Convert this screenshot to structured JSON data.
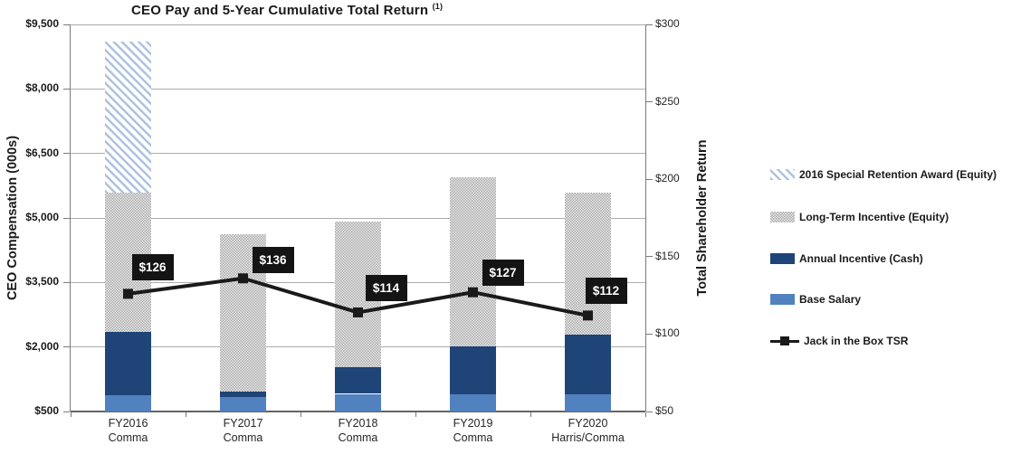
{
  "chart_title": {
    "text": "CEO Pay and 5-Year Cumulative Total Return",
    "footnote_marker": "(1)"
  },
  "chart_data": {
    "type": "combo: stacked-bar + line",
    "title": "CEO Pay and 5-Year Cumulative Total Return (1)",
    "categories": [
      "FY2016 Comma",
      "FY2017 Comma",
      "FY2018 Comma",
      "FY2019 Comma",
      "FY2020 Harris/Comma"
    ],
    "category_lines": [
      [
        "FY2016",
        "Comma"
      ],
      [
        "FY2017",
        "Comma"
      ],
      [
        "FY2018",
        "Comma"
      ],
      [
        "FY2019",
        "Comma"
      ],
      [
        "FY2020",
        "Harris/Comma"
      ]
    ],
    "bar_series": [
      {
        "name": "Base Salary",
        "swatch": "solid-blue",
        "color": "#5281C0",
        "values": [
          880,
          835,
          910,
          905,
          890
        ]
      },
      {
        "name": "Annual Incentive (Cash)",
        "swatch": "solid-navy",
        "color": "#1F4477",
        "values": [
          1480,
          125,
          630,
          1105,
          1400
        ]
      },
      {
        "name": "Long-Term Incentive (Equity)",
        "swatch": "gray-checker-pattern",
        "color": "#C9C9C9",
        "values": [
          3235,
          3655,
          3375,
          3935,
          3305
        ]
      },
      {
        "name": "2016 Special Retention Award (Equity)",
        "swatch": "blue-diagonal-hatch",
        "color": "#AEC2E0",
        "values": [
          3500,
          0,
          0,
          0,
          0
        ]
      }
    ],
    "bar_totals": [
      9095,
      4615,
      4915,
      5945,
      5595
    ],
    "line_series": {
      "name": "Jack in the Box TSR",
      "color": "#1A1A1A",
      "values": [
        126,
        136,
        114,
        127,
        112
      ],
      "point_labels": [
        "$126",
        "$136",
        "$114",
        "$127",
        "$112"
      ]
    },
    "left_axis": {
      "title": "CEO Compensation (000s)",
      "min": 500,
      "max": 9500,
      "tick_step": 1500,
      "tick_labels": [
        "$9,500",
        "$8,000",
        "$6,500",
        "$5,000",
        "$3,500",
        "$2,000",
        "$500"
      ]
    },
    "right_axis": {
      "title": "Total Shareholder Return",
      "min": 50,
      "max": 300,
      "tick_step": 50,
      "tick_labels": [
        "$300",
        "$250",
        "$200",
        "$150",
        "$100",
        "$50"
      ]
    },
    "legend": [
      {
        "label": "2016 Special Retention Award (Equity)",
        "swatch": "blue-diagonal-hatch"
      },
      {
        "label": "Long-Term Incentive (Equity)",
        "swatch": "gray-checker-pattern"
      },
      {
        "label": "Annual Incentive (Cash)",
        "swatch": "solid-navy"
      },
      {
        "label": "Base Salary",
        "swatch": "solid-blue"
      },
      {
        "label": "Jack in the Box TSR",
        "swatch": "line-with-square-marker"
      }
    ],
    "legend_position": "right",
    "gridlines": "horizontal, aligned to left axis ticks",
    "colors": {
      "base_salary": "#5281C0",
      "annual_incentive": "#1F4477",
      "hatch_stripe": "#AEC2E0",
      "checker_gray": "#ACACAC",
      "tsr_line": "#1A1A1A",
      "data_label_bg": "#141414",
      "data_label_text": "#FFFFFF",
      "gridline": "#ACACAC",
      "axis": "#7A7A7A"
    }
  }
}
